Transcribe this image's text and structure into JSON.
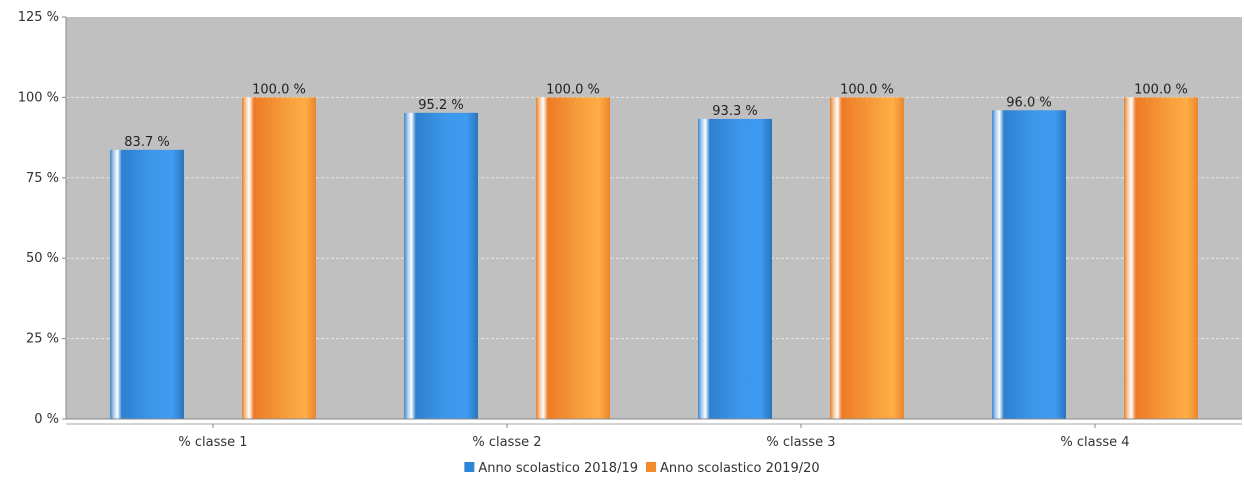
{
  "chart_data": {
    "type": "bar",
    "title": "",
    "xlabel": "",
    "ylabel": "",
    "categories": [
      "% classe 1",
      "% classe 2",
      "% classe 3",
      "% classe 4"
    ],
    "series": [
      {
        "name": "Anno scolastico 2018/19",
        "values": [
          83.7,
          95.2,
          93.3,
          96.0
        ],
        "labels": [
          "83.7 %",
          "95.2 %",
          "93.3 %",
          "96.0 %"
        ],
        "color": "#2f86d6"
      },
      {
        "name": "Anno scolastico 2019/20",
        "values": [
          100.0,
          100.0,
          100.0,
          100.0
        ],
        "labels": [
          "100.0 %",
          "100.0 %",
          "100.0 %",
          "100.0 %"
        ],
        "color": "#f28a2e"
      }
    ],
    "y_ticks": [
      0,
      25,
      50,
      75,
      100,
      125
    ],
    "y_tick_labels": [
      "0 %",
      "25 %",
      "50 %",
      "75 %",
      "100 %",
      "125 %"
    ],
    "ylim": [
      0,
      125
    ],
    "grid": true,
    "legend_position": "bottom-center",
    "plot_background": "#c0c0c0"
  }
}
